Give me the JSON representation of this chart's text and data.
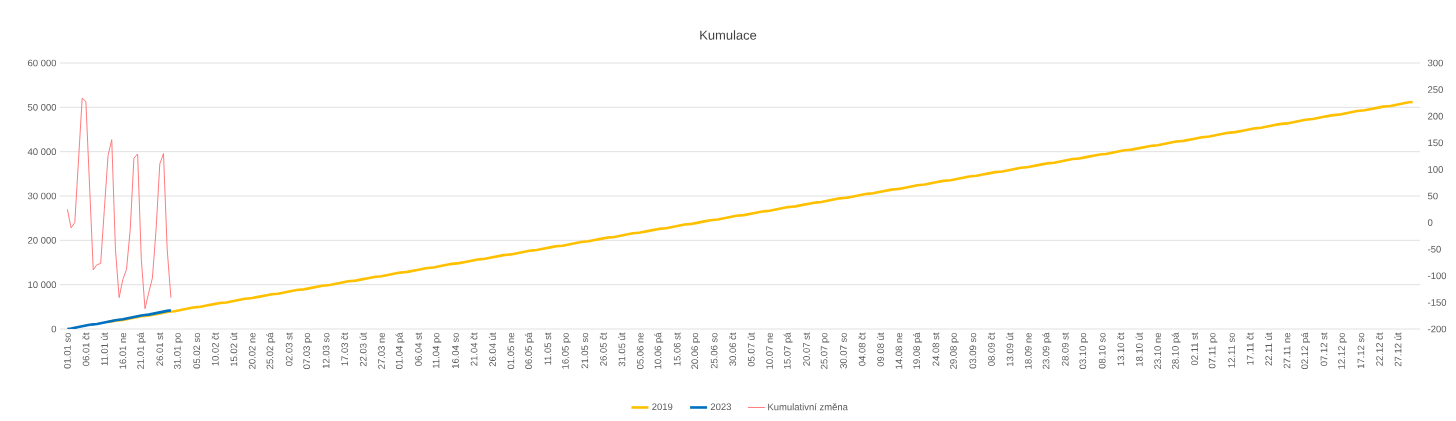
{
  "chart_data": {
    "type": "line",
    "title": "Kumulace",
    "categories": [
      "01.01 so",
      null,
      null,
      null,
      null,
      "06.01 čt",
      null,
      null,
      null,
      null,
      "11.01 út",
      null,
      null,
      null,
      null,
      "16.01 ne",
      null,
      null,
      null,
      null,
      "21.01 pá",
      null,
      null,
      null,
      null,
      "26.01 st",
      null,
      null,
      null,
      null,
      "31.01 po",
      null,
      null,
      null,
      null,
      "05.02 so",
      null,
      null,
      null,
      null,
      "10.02 čt",
      null,
      null,
      null,
      null,
      "15.02 út",
      null,
      null,
      null,
      null,
      "20.02 ne",
      null,
      null,
      null,
      null,
      "25.02 pá",
      null,
      null,
      null,
      null,
      "02.03 st",
      null,
      null,
      null,
      null,
      "07.03 po",
      null,
      null,
      null,
      null,
      "12.03 so",
      null,
      null,
      null,
      null,
      "17.03 čt",
      null,
      null,
      null,
      null,
      "22.03 út",
      null,
      null,
      null,
      null,
      "27.03 ne",
      null,
      null,
      null,
      null,
      "01.04 pá",
      null,
      null,
      null,
      null,
      "06.04 st",
      null,
      null,
      null,
      null,
      "11.04 po",
      null,
      null,
      null,
      null,
      "16.04 so",
      null,
      null,
      null,
      null,
      "21.04 čt",
      null,
      null,
      null,
      null,
      "26.04 út",
      null,
      null,
      null,
      null,
      "01.05 ne",
      null,
      null,
      null,
      null,
      "06.05 pá",
      null,
      null,
      null,
      null,
      "11.05 st",
      null,
      null,
      null,
      null,
      "16.05 po",
      null,
      null,
      null,
      null,
      "21.05 so",
      null,
      null,
      null,
      null,
      "26.05 čt",
      null,
      null,
      null,
      null,
      "31.05 út",
      null,
      null,
      null,
      null,
      "05.06 ne",
      null,
      null,
      null,
      null,
      "10.06 pá",
      null,
      null,
      null,
      null,
      "15.06 st",
      null,
      null,
      null,
      null,
      "20.06 po",
      null,
      null,
      null,
      null,
      "25.06 so",
      null,
      null,
      null,
      null,
      "30.06 čt",
      null,
      null,
      null,
      null,
      "05.07 út",
      null,
      null,
      null,
      null,
      "10.07 ne",
      null,
      null,
      null,
      null,
      "15.07 pá",
      null,
      null,
      null,
      null,
      "20.07 st",
      null,
      null,
      null,
      null,
      "25.07 po",
      null,
      null,
      null,
      null,
      "30.07 so",
      null,
      null,
      null,
      null,
      "04.08 čt",
      null,
      null,
      null,
      null,
      "09.08 út",
      null,
      null,
      null,
      null,
      "14.08 ne",
      null,
      null,
      null,
      null,
      "19.08 pá",
      null,
      null,
      null,
      null,
      "24.08 st",
      null,
      null,
      null,
      null,
      "29.08 po",
      null,
      null,
      null,
      null,
      "03.09 so",
      null,
      null,
      null,
      null,
      "08.09 čt",
      null,
      null,
      null,
      null,
      "13.09 út",
      null,
      null,
      null,
      null,
      "18.09 ne",
      null,
      null,
      null,
      null,
      "23.09 pá",
      null,
      null,
      null,
      null,
      "28.09 st",
      null,
      null,
      null,
      null,
      "03.10 po",
      null,
      null,
      null,
      null,
      "08.10 so",
      null,
      null,
      null,
      null,
      "13.10 čt",
      null,
      null,
      null,
      null,
      "18.10 út",
      null,
      null,
      null,
      null,
      "23.10 ne",
      null,
      null,
      null,
      null,
      "28.10 pá",
      null,
      null,
      null,
      null,
      "02.11 st",
      null,
      null,
      null,
      null,
      "07.11 po",
      null,
      null,
      null,
      null,
      "12.11 so",
      null,
      null,
      null,
      null,
      "17.11 čt",
      null,
      null,
      null,
      null,
      "22.11 út",
      null,
      null,
      null,
      null,
      "27.11 ne",
      null,
      null,
      null,
      null,
      "02.12 pá",
      null,
      null,
      null,
      null,
      "07.12 st",
      null,
      null,
      null,
      null,
      "12.12 po",
      null,
      null,
      null,
      null,
      "17.12 so",
      null,
      null,
      null,
      null,
      "22.12 čt",
      null,
      null,
      null,
      null,
      "27.12 út",
      null,
      null,
      null,
      null
    ],
    "series": [
      {
        "name": "2019",
        "color": "#ffc000",
        "values": [
          null,
          null,
          null,
          null,
          null,
          null,
          null,
          null,
          null,
          null,
          null,
          1560,
          1725,
          1890,
          1970,
          2050,
          2215,
          2380,
          2545,
          2710,
          2875,
          2955,
          3035,
          3200,
          3365,
          3530,
          3695,
          3860,
          3940,
          4020,
          4185,
          4350,
          4515,
          4680,
          4845,
          4925,
          5005,
          5170,
          5335,
          5500,
          5665,
          5830,
          5910,
          5990,
          6155,
          6320,
          6485,
          6650,
          6815,
          6895,
          6975,
          7140,
          7305,
          7470,
          7635,
          7800,
          7880,
          7960,
          8125,
          8290,
          8455,
          8620,
          8785,
          8865,
          8945,
          9110,
          9275,
          9440,
          9605,
          9770,
          9850,
          9930,
          10095,
          10260,
          10425,
          10590,
          10755,
          10835,
          10915,
          11080,
          11245,
          11410,
          11575,
          11740,
          11820,
          11900,
          12065,
          12230,
          12395,
          12560,
          12725,
          12805,
          12885,
          13050,
          13215,
          13380,
          13545,
          13710,
          13790,
          13870,
          14035,
          14200,
          14365,
          14530,
          14695,
          14775,
          14855,
          15020,
          15185,
          15350,
          15515,
          15680,
          15760,
          15840,
          16005,
          16170,
          16335,
          16500,
          16665,
          16745,
          16825,
          16990,
          17155,
          17320,
          17485,
          17650,
          17730,
          17810,
          17975,
          18140,
          18305,
          18470,
          18635,
          18715,
          18795,
          18960,
          19125,
          19290,
          19455,
          19620,
          19700,
          19780,
          19945,
          20110,
          20275,
          20440,
          20605,
          20685,
          20765,
          20930,
          21095,
          21260,
          21425,
          21590,
          21670,
          21750,
          21915,
          22080,
          22245,
          22410,
          22575,
          22655,
          22735,
          22900,
          23065,
          23230,
          23395,
          23560,
          23640,
          23720,
          23885,
          24050,
          24215,
          24380,
          24545,
          24625,
          24705,
          24870,
          25035,
          25200,
          25365,
          25530,
          25610,
          25690,
          25855,
          26020,
          26185,
          26350,
          26515,
          26595,
          26675,
          26840,
          27005,
          27170,
          27335,
          27500,
          27580,
          27660,
          27825,
          27990,
          28155,
          28320,
          28485,
          28565,
          28645,
          28810,
          28975,
          29140,
          29305,
          29470,
          29550,
          29630,
          29795,
          29960,
          30125,
          30290,
          30455,
          30535,
          30615,
          30780,
          30945,
          31110,
          31275,
          31440,
          31520,
          31600,
          31765,
          31930,
          32095,
          32260,
          32425,
          32505,
          32585,
          32750,
          32915,
          33080,
          33245,
          33410,
          33490,
          33570,
          33735,
          33900,
          34065,
          34230,
          34395,
          34475,
          34555,
          34720,
          34885,
          35050,
          35215,
          35380,
          35460,
          35540,
          35705,
          35870,
          36035,
          36200,
          36365,
          36445,
          36525,
          36690,
          36855,
          37020,
          37185,
          37350,
          37430,
          37510,
          37675,
          37840,
          38005,
          38170,
          38335,
          38415,
          38495,
          38660,
          38825,
          38990,
          39155,
          39320,
          39400,
          39480,
          39645,
          39810,
          39975,
          40140,
          40305,
          40385,
          40465,
          40630,
          40795,
          40960,
          41125,
          41290,
          41370,
          41450,
          41615,
          41780,
          41945,
          42110,
          42275,
          42355,
          42435,
          42600,
          42765,
          42930,
          43095,
          43260,
          43340,
          43420,
          43585,
          43750,
          43915,
          44080,
          44245,
          44325,
          44405,
          44570,
          44735,
          44900,
          45065,
          45230,
          45310,
          45390,
          45555,
          45720,
          45885,
          46050,
          46215,
          46295,
          46375,
          46540,
          46705,
          46870,
          47035,
          47200,
          47280,
          47360,
          47525,
          47690,
          47855,
          48020,
          48185,
          48265,
          48345,
          48510,
          48675,
          48840,
          49005,
          49170,
          49250,
          49330,
          49495,
          49660,
          49825,
          49990,
          50155,
          50235,
          50315,
          50480,
          50645,
          50810,
          50975,
          51140,
          51220
        ]
      },
      {
        "name": "2023",
        "color": "#0070c0",
        "values": [
          0,
          90,
          260,
          430,
          600,
          770,
          940,
          1050,
          1140,
          1310,
          1480,
          1650,
          1820,
          1990,
          2100,
          2190,
          2360,
          2530,
          2700,
          2870,
          3040,
          3150,
          3240,
          3410,
          3580,
          3750,
          3920,
          4090,
          4200,
          null,
          null,
          null,
          null,
          null,
          null,
          null,
          null,
          null,
          null,
          null,
          null,
          null,
          null,
          null,
          null,
          null,
          null,
          null,
          null,
          null,
          null,
          null,
          null,
          null,
          null,
          null,
          null,
          null,
          null,
          null,
          null,
          null,
          null,
          null,
          null,
          null,
          null,
          null,
          null,
          null,
          null,
          null,
          null,
          null,
          null,
          null,
          null,
          null,
          null,
          null,
          null,
          null,
          null,
          null,
          null,
          null,
          null,
          null,
          null,
          null,
          null,
          null,
          null,
          null,
          null,
          null,
          null,
          null,
          null,
          null,
          null,
          null,
          null,
          null,
          null,
          null,
          null,
          null,
          null,
          null,
          null,
          null,
          null,
          null,
          null,
          null,
          null,
          null,
          null,
          null,
          null,
          null,
          null,
          null,
          null,
          null,
          null,
          null,
          null,
          null,
          null,
          null,
          null,
          null,
          null,
          null,
          null,
          null,
          null,
          null,
          null,
          null,
          null,
          null,
          null,
          null,
          null,
          null,
          null,
          null,
          null,
          null,
          null,
          null,
          null,
          null,
          null,
          null,
          null,
          null,
          null,
          null,
          null,
          null,
          null,
          null,
          null,
          null,
          null,
          null,
          null,
          null,
          null,
          null,
          null,
          null,
          null,
          null,
          null,
          null,
          null,
          null,
          null,
          null,
          null,
          null,
          null,
          null,
          null,
          null,
          null,
          null,
          null,
          null,
          null,
          null,
          null,
          null,
          null,
          null,
          null,
          null,
          null,
          null,
          null,
          null,
          null,
          null,
          null,
          null,
          null,
          null,
          null,
          null,
          null,
          null,
          null,
          null,
          null,
          null,
          null,
          null,
          null,
          null,
          null,
          null,
          null,
          null,
          null,
          null,
          null,
          null,
          null,
          null,
          null,
          null,
          null,
          null,
          null,
          null,
          null,
          null,
          null,
          null,
          null,
          null,
          null,
          null,
          null,
          null,
          null,
          null,
          null,
          null,
          null,
          null,
          null,
          null,
          null,
          null,
          null,
          null,
          null,
          null,
          null,
          null,
          null,
          null,
          null,
          null,
          null,
          null,
          null,
          null,
          null,
          null,
          null,
          null,
          null,
          null,
          null,
          null,
          null,
          null,
          null,
          null,
          null,
          null,
          null,
          null,
          null,
          null,
          null,
          null,
          null,
          null,
          null,
          null,
          null,
          null,
          null,
          null,
          null,
          null,
          null,
          null,
          null,
          null,
          null,
          null,
          null,
          null,
          null,
          null,
          null,
          null,
          null,
          null,
          null,
          null,
          null,
          null,
          null,
          null,
          null,
          null,
          null,
          null,
          null,
          null,
          null,
          null,
          null,
          null,
          null,
          null,
          null,
          null,
          null,
          null,
          null,
          null,
          null,
          null,
          null,
          null,
          null,
          null,
          null,
          null,
          null,
          null,
          null,
          null,
          null,
          null,
          null,
          null,
          null,
          null,
          null,
          null,
          null,
          null,
          null
        ]
      },
      {
        "name": "Kumulativní změna",
        "color": "#ff7c80",
        "axis": "y2",
        "values": [
          25,
          -10,
          0,
          116,
          234,
          228,
          69,
          -89,
          -79,
          -77,
          25,
          126,
          156,
          -50,
          -141,
          -107,
          -88,
          -13,
          121,
          129,
          -69,
          -162,
          -132,
          -104,
          -13,
          110,
          130,
          -50,
          -141,
          null,
          null,
          null,
          null,
          null,
          null,
          null,
          null,
          null,
          null,
          null,
          null,
          null,
          null,
          null,
          null,
          null,
          null,
          null,
          null,
          null,
          null,
          null,
          null,
          null,
          null,
          null,
          null,
          null,
          null,
          null,
          null,
          null,
          null,
          null,
          null,
          null,
          null,
          null,
          null,
          null,
          null,
          null,
          null,
          null,
          null,
          null,
          null,
          null,
          null,
          null,
          null,
          null,
          null,
          null,
          null,
          null,
          null,
          null,
          null,
          null,
          null,
          null,
          null,
          null,
          null,
          null,
          null,
          null,
          null,
          null,
          null,
          null,
          null,
          null,
          null,
          null,
          null,
          null,
          null,
          null,
          null,
          null,
          null,
          null,
          null,
          null,
          null,
          null,
          null,
          null,
          null,
          null,
          null,
          null,
          null,
          null,
          null,
          null,
          null,
          null,
          null,
          null,
          null,
          null,
          null,
          null,
          null,
          null,
          null,
          null,
          null,
          null,
          null,
          null,
          null,
          null,
          null,
          null,
          null,
          null,
          null,
          null,
          null,
          null,
          null,
          null,
          null,
          null,
          null,
          null,
          null,
          null,
          null,
          null,
          null,
          null,
          null,
          null,
          null,
          null,
          null,
          null,
          null,
          null,
          null,
          null,
          null,
          null,
          null,
          null,
          null,
          null,
          null,
          null,
          null,
          null,
          null,
          null,
          null,
          null,
          null,
          null,
          null,
          null,
          null,
          null,
          null,
          null,
          null,
          null,
          null,
          null,
          null,
          null,
          null,
          null,
          null,
          null,
          null,
          null,
          null,
          null,
          null,
          null,
          null,
          null,
          null,
          null,
          null,
          null,
          null,
          null,
          null,
          null,
          null,
          null,
          null,
          null,
          null,
          null,
          null,
          null,
          null,
          null,
          null,
          null,
          null,
          null,
          null,
          null,
          null,
          null,
          null,
          null,
          null,
          null,
          null,
          null,
          null,
          null,
          null,
          null,
          null,
          null,
          null,
          null,
          null,
          null,
          null,
          null,
          null,
          null,
          null,
          null,
          null,
          null,
          null,
          null,
          null,
          null,
          null,
          null,
          null,
          null,
          null,
          null,
          null,
          null,
          null,
          null,
          null,
          null,
          null,
          null,
          null,
          null,
          null,
          null,
          null,
          null,
          null,
          null,
          null,
          null,
          null,
          null,
          null,
          null,
          null,
          null,
          null,
          null,
          null,
          null,
          null,
          null,
          null,
          null,
          null,
          null,
          null,
          null,
          null,
          null,
          null,
          null,
          null,
          null,
          null,
          null,
          null,
          null,
          null,
          null,
          null,
          null,
          null,
          null,
          null,
          null,
          null,
          null,
          null,
          null,
          null,
          null,
          null,
          null,
          null,
          null,
          null,
          null,
          null,
          null,
          null,
          null,
          null,
          null,
          null,
          null,
          null,
          null,
          null,
          null,
          null,
          null,
          null,
          null,
          null,
          null,
          null,
          null,
          null,
          null,
          null
        ]
      }
    ],
    "ylim": [
      0,
      60000
    ],
    "yticks": [
      0,
      {
        "value": 10000,
        "label": "10 000"
      },
      {
        "value": 20000,
        "label": "20 000"
      },
      {
        "value": 30000,
        "label": "30 000"
      },
      {
        "value": 40000,
        "label": "40 000"
      },
      {
        "value": 50000,
        "label": "50 000"
      },
      {
        "value": 60000,
        "label": "60 000"
      }
    ],
    "y2lim": [
      -200,
      300
    ],
    "y2ticks": [
      -200,
      -150,
      -100,
      -50,
      0,
      50,
      100,
      150,
      200,
      250,
      300
    ],
    "grid": "y",
    "legend": "bottom"
  }
}
